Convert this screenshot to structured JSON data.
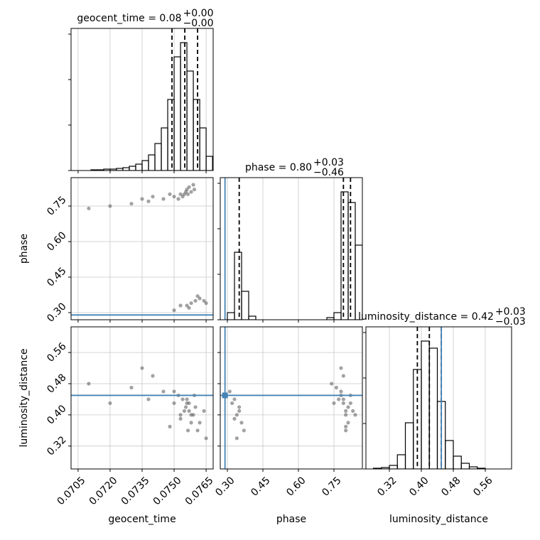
{
  "chart_data": {
    "type": "corner",
    "grid": true,
    "truth_color": "#4682b4",
    "parameters": [
      {
        "name": "geocent_time",
        "title": "geocent_time = 0.08",
        "title_plus": "+0.00",
        "title_minus": "−0.00",
        "xlim": [
          0.07017,
          0.07683
        ],
        "xticks": [
          {
            "value": 0.0705,
            "label": "0.0705"
          },
          {
            "value": 0.072,
            "label": "0.0720"
          },
          {
            "value": 0.0735,
            "label": "0.0735"
          },
          {
            "value": 0.075,
            "label": "0.0750"
          },
          {
            "value": 0.0765,
            "label": "0.0765"
          }
        ],
        "bins": [
          0.0702,
          0.0705,
          0.0708,
          0.0711,
          0.0714,
          0.0717,
          0.072,
          0.0723,
          0.0726,
          0.0729,
          0.0732,
          0.0735,
          0.0738,
          0.0741,
          0.0744,
          0.0747,
          0.075,
          0.0753,
          0.0756,
          0.0759,
          0.0762,
          0.0765,
          0.0768
        ],
        "counts": [
          0,
          0,
          0,
          1,
          1,
          2,
          2,
          3,
          4,
          6,
          9,
          14,
          22,
          38,
          60,
          100,
          160,
          180,
          140,
          100,
          60,
          20
        ],
        "ylim": [
          0,
          200
        ],
        "quantiles": [
          0.0749,
          0.0755,
          0.0761
        ],
        "samples": [
          0.07555,
          0.07548,
          0.0756,
          0.0754,
          0.0753,
          0.0757,
          0.0752,
          0.075,
          0.0745,
          0.0738,
          0.073,
          0.072,
          0.071,
          0.0758,
          0.07565,
          0.0759,
          0.076,
          0.0758,
          0.0762,
          0.0756,
          0.0764,
          0.0761,
          0.0757,
          0.075,
          0.0765,
          0.0753,
          0.074,
          0.0735,
          0.0748,
          0.07595
        ]
      },
      {
        "name": "phase",
        "title": "phase = 0.80",
        "title_plus": "+0.03",
        "title_minus": "−0.46",
        "xlim": [
          0.27,
          0.87
        ],
        "xticks": [
          {
            "value": 0.3,
            "label": "0.30"
          },
          0.45,
          {
            "value": 0.6,
            "label": "0.60"
          },
          0.75
        ],
        "bins": [
          0.27,
          0.3,
          0.33,
          0.36,
          0.39,
          0.42,
          0.45,
          0.48,
          0.51,
          0.54,
          0.57,
          0.6,
          0.63,
          0.66,
          0.69,
          0.72,
          0.75,
          0.78,
          0.81,
          0.84,
          0.87
        ],
        "counts": [
          0,
          10,
          95,
          40,
          5,
          0,
          0,
          0,
          0,
          0,
          0,
          0,
          0,
          0,
          0,
          3,
          10,
          180,
          165,
          105
        ],
        "ylim": [
          0,
          200
        ],
        "quantiles": [
          0.35,
          0.79,
          0.82
        ],
        "truth": 0.29,
        "samples": [
          0.81,
          0.8,
          0.82,
          0.79,
          0.8,
          0.83,
          0.78,
          0.79,
          0.78,
          0.77,
          0.76,
          0.75,
          0.74,
          0.81,
          0.8,
          0.84,
          0.35,
          0.34,
          0.36,
          0.33,
          0.35,
          0.37,
          0.32,
          0.31,
          0.34,
          0.33,
          0.79,
          0.78,
          0.8,
          0.82
        ]
      },
      {
        "name": "luminosity_distance",
        "title": "luminosity_distance = 0.42",
        "title_plus": "+0.03",
        "title_minus": "−0.03",
        "xlim": [
          0.2613,
          0.6258
        ],
        "xticks": [
          0.32,
          {
            "value": 0.4,
            "label": "0.40"
          },
          0.48,
          0.56
        ],
        "bins": [
          0.28,
          0.3,
          0.32,
          0.34,
          0.36,
          0.38,
          0.4,
          0.42,
          0.44,
          0.46,
          0.48,
          0.5,
          0.52,
          0.54,
          0.56,
          0.58,
          0.6
        ],
        "counts": [
          1,
          2,
          5,
          20,
          65,
          140,
          180,
          170,
          95,
          40,
          18,
          8,
          3,
          1,
          0,
          0
        ],
        "ylim": [
          0,
          200
        ],
        "quantiles": [
          0.39,
          0.42,
          0.45
        ],
        "truth": 0.45,
        "samples": [
          0.42,
          0.41,
          0.43,
          0.44,
          0.4,
          0.41,
          0.45,
          0.43,
          0.46,
          0.44,
          0.47,
          0.43,
          0.48,
          0.38,
          0.36,
          0.4,
          0.42,
          0.4,
          0.38,
          0.44,
          0.41,
          0.36,
          0.43,
          0.46,
          0.34,
          0.39,
          0.5,
          0.52,
          0.37,
          0.45
        ]
      }
    ]
  }
}
